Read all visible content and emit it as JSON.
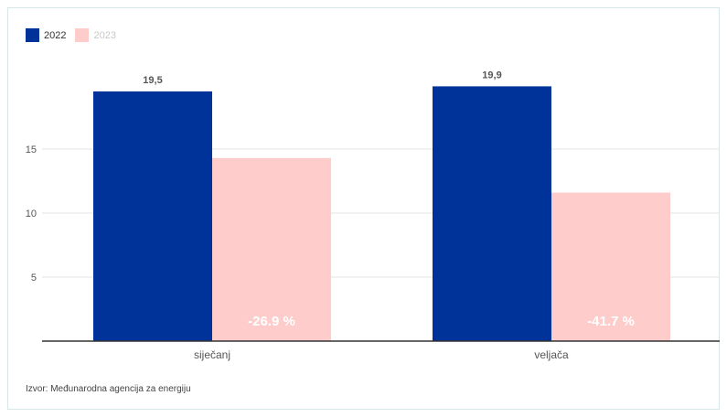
{
  "legend": [
    {
      "label": "2022",
      "color": "#003399"
    },
    {
      "label": "2023",
      "color": "#ffcccc"
    }
  ],
  "source": "Izvor: Međunarodna agencija za energiju",
  "colors": {
    "series_2022": "#003399",
    "series_2023": "#ffcccc",
    "axis": "#333333",
    "grid": "#e6e6e6",
    "tick_text": "#555555",
    "value_label": "#555555",
    "pct_label": "#ffffff"
  },
  "chart_data": {
    "type": "bar",
    "categories": [
      "siječanj",
      "veljača"
    ],
    "series": [
      {
        "name": "2022",
        "values": [
          19.5,
          19.9
        ],
        "labels": [
          "19,5",
          "19,9"
        ]
      },
      {
        "name": "2023",
        "values": [
          14.3,
          11.6
        ],
        "labels": [
          "-26.9 %",
          "-41.7 %"
        ]
      }
    ],
    "yticks": [
      5,
      10,
      15
    ],
    "ylim": [
      0,
      21.5
    ],
    "grid": true,
    "legend_position": "top-left"
  }
}
